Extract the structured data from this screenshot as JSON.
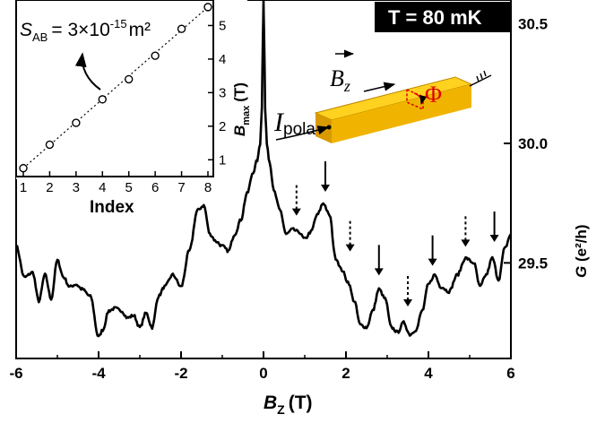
{
  "chart_data": [
    {
      "type": "line",
      "xlabel": "B",
      "xlabel_sub": "Z",
      "xlabel_unit": "(T)",
      "ylabel": "G (e²/h)",
      "xlim": [
        -6,
        6
      ],
      "ylim": [
        29.1,
        30.6
      ],
      "x_ticks": [
        "-6",
        "-4",
        "-2",
        "0",
        "2",
        "4",
        "6"
      ],
      "y_ticks": [
        "29.5",
        "30.0",
        "30.5"
      ],
      "y_tick_values": [
        29.5,
        30.0,
        30.5
      ],
      "temperature_label": "T = 80 mK",
      "series": [
        {
          "x": [
            -6.0,
            -5.8,
            -5.6,
            -5.45,
            -5.3,
            -5.15,
            -5.0,
            -4.85,
            -4.7,
            -4.55,
            -4.4,
            -4.2,
            -4.0,
            -3.9,
            -3.75,
            -3.6,
            -3.45,
            -3.3,
            -3.15,
            -3.0,
            -2.85,
            -2.7,
            -2.55,
            -2.4,
            -2.2,
            -2.0,
            -1.8,
            -1.6,
            -1.45,
            -1.3,
            -1.15,
            -1.0,
            -0.85,
            -0.7,
            -0.55,
            -0.4,
            -0.25,
            -0.15,
            -0.08,
            -0.04,
            -0.015,
            0.0,
            0.015,
            0.04,
            0.08,
            0.15,
            0.25,
            0.4,
            0.55,
            0.7,
            0.85,
            1.0,
            1.15,
            1.3,
            1.45,
            1.6,
            1.75,
            1.9,
            2.05,
            2.2,
            2.35,
            2.5,
            2.65,
            2.8,
            2.95,
            3.1,
            3.25,
            3.4,
            3.55,
            3.7,
            3.85,
            4.0,
            4.15,
            4.3,
            4.5,
            4.7,
            4.9,
            5.1,
            5.25,
            5.4,
            5.55,
            5.7,
            5.85,
            6.0
          ],
          "y": [
            29.57,
            29.44,
            29.46,
            29.34,
            29.45,
            29.35,
            29.51,
            29.44,
            29.4,
            29.41,
            29.39,
            29.36,
            29.19,
            29.22,
            29.3,
            29.31,
            29.3,
            29.27,
            29.28,
            29.23,
            29.29,
            29.23,
            29.36,
            29.4,
            29.45,
            29.4,
            29.55,
            29.72,
            29.74,
            29.62,
            29.59,
            29.57,
            29.55,
            29.62,
            29.68,
            29.79,
            29.88,
            29.93,
            30.0,
            30.15,
            30.45,
            30.6,
            30.45,
            30.15,
            30.0,
            29.92,
            29.8,
            29.72,
            29.62,
            29.64,
            29.63,
            29.6,
            29.63,
            29.7,
            29.75,
            29.7,
            29.52,
            29.47,
            29.42,
            29.34,
            29.24,
            29.23,
            29.3,
            29.39,
            29.35,
            29.23,
            29.21,
            29.25,
            29.2,
            29.22,
            29.3,
            29.41,
            29.45,
            29.4,
            29.38,
            29.45,
            29.52,
            29.5,
            29.4,
            29.45,
            29.52,
            29.43,
            29.56,
            29.62
          ]
        }
      ],
      "annotations": [
        {
          "x": 0.8,
          "y": 29.66,
          "style": "dotted"
        },
        {
          "x": 1.5,
          "y": 29.76,
          "style": "solid"
        },
        {
          "x": 2.1,
          "y": 29.51,
          "style": "dotted"
        },
        {
          "x": 2.8,
          "y": 29.41,
          "style": "solid"
        },
        {
          "x": 3.5,
          "y": 29.28,
          "style": "dotted"
        },
        {
          "x": 4.1,
          "y": 29.45,
          "style": "solid"
        },
        {
          "x": 4.9,
          "y": 29.53,
          "style": "dotted"
        },
        {
          "x": 5.6,
          "y": 29.55,
          "style": "solid"
        }
      ]
    },
    {
      "type": "scatter",
      "xlabel": "Index",
      "ylabel": "B",
      "ylabel_sub": "max",
      "ylabel_unit": "(T)",
      "xlim": [
        1,
        8
      ],
      "ylim": [
        0.5,
        5.6
      ],
      "x_ticks": [
        "1",
        "2",
        "3",
        "4",
        "5",
        "6",
        "7",
        "8"
      ],
      "y_ticks": [
        "1",
        "2",
        "3",
        "4",
        "5"
      ],
      "x": [
        1,
        2,
        3,
        4,
        5,
        6,
        7,
        8
      ],
      "y": [
        0.75,
        1.45,
        2.1,
        2.8,
        3.4,
        4.1,
        4.9,
        5.55
      ],
      "fit_label": "S",
      "fit_label_sub": "AB",
      "fit_value": "= 3×10",
      "fit_exp": "-15",
      "fit_unit": "m²"
    }
  ],
  "schematic": {
    "field_label": "B",
    "field_sub": "z",
    "flux_label": "Φ",
    "current_label": "I",
    "current_sub": "pola",
    "colors": {
      "bar_top": "#FFD21F",
      "bar_front": "#F0B400",
      "bar_side": "#D89A00",
      "flux": "#E00000"
    }
  }
}
